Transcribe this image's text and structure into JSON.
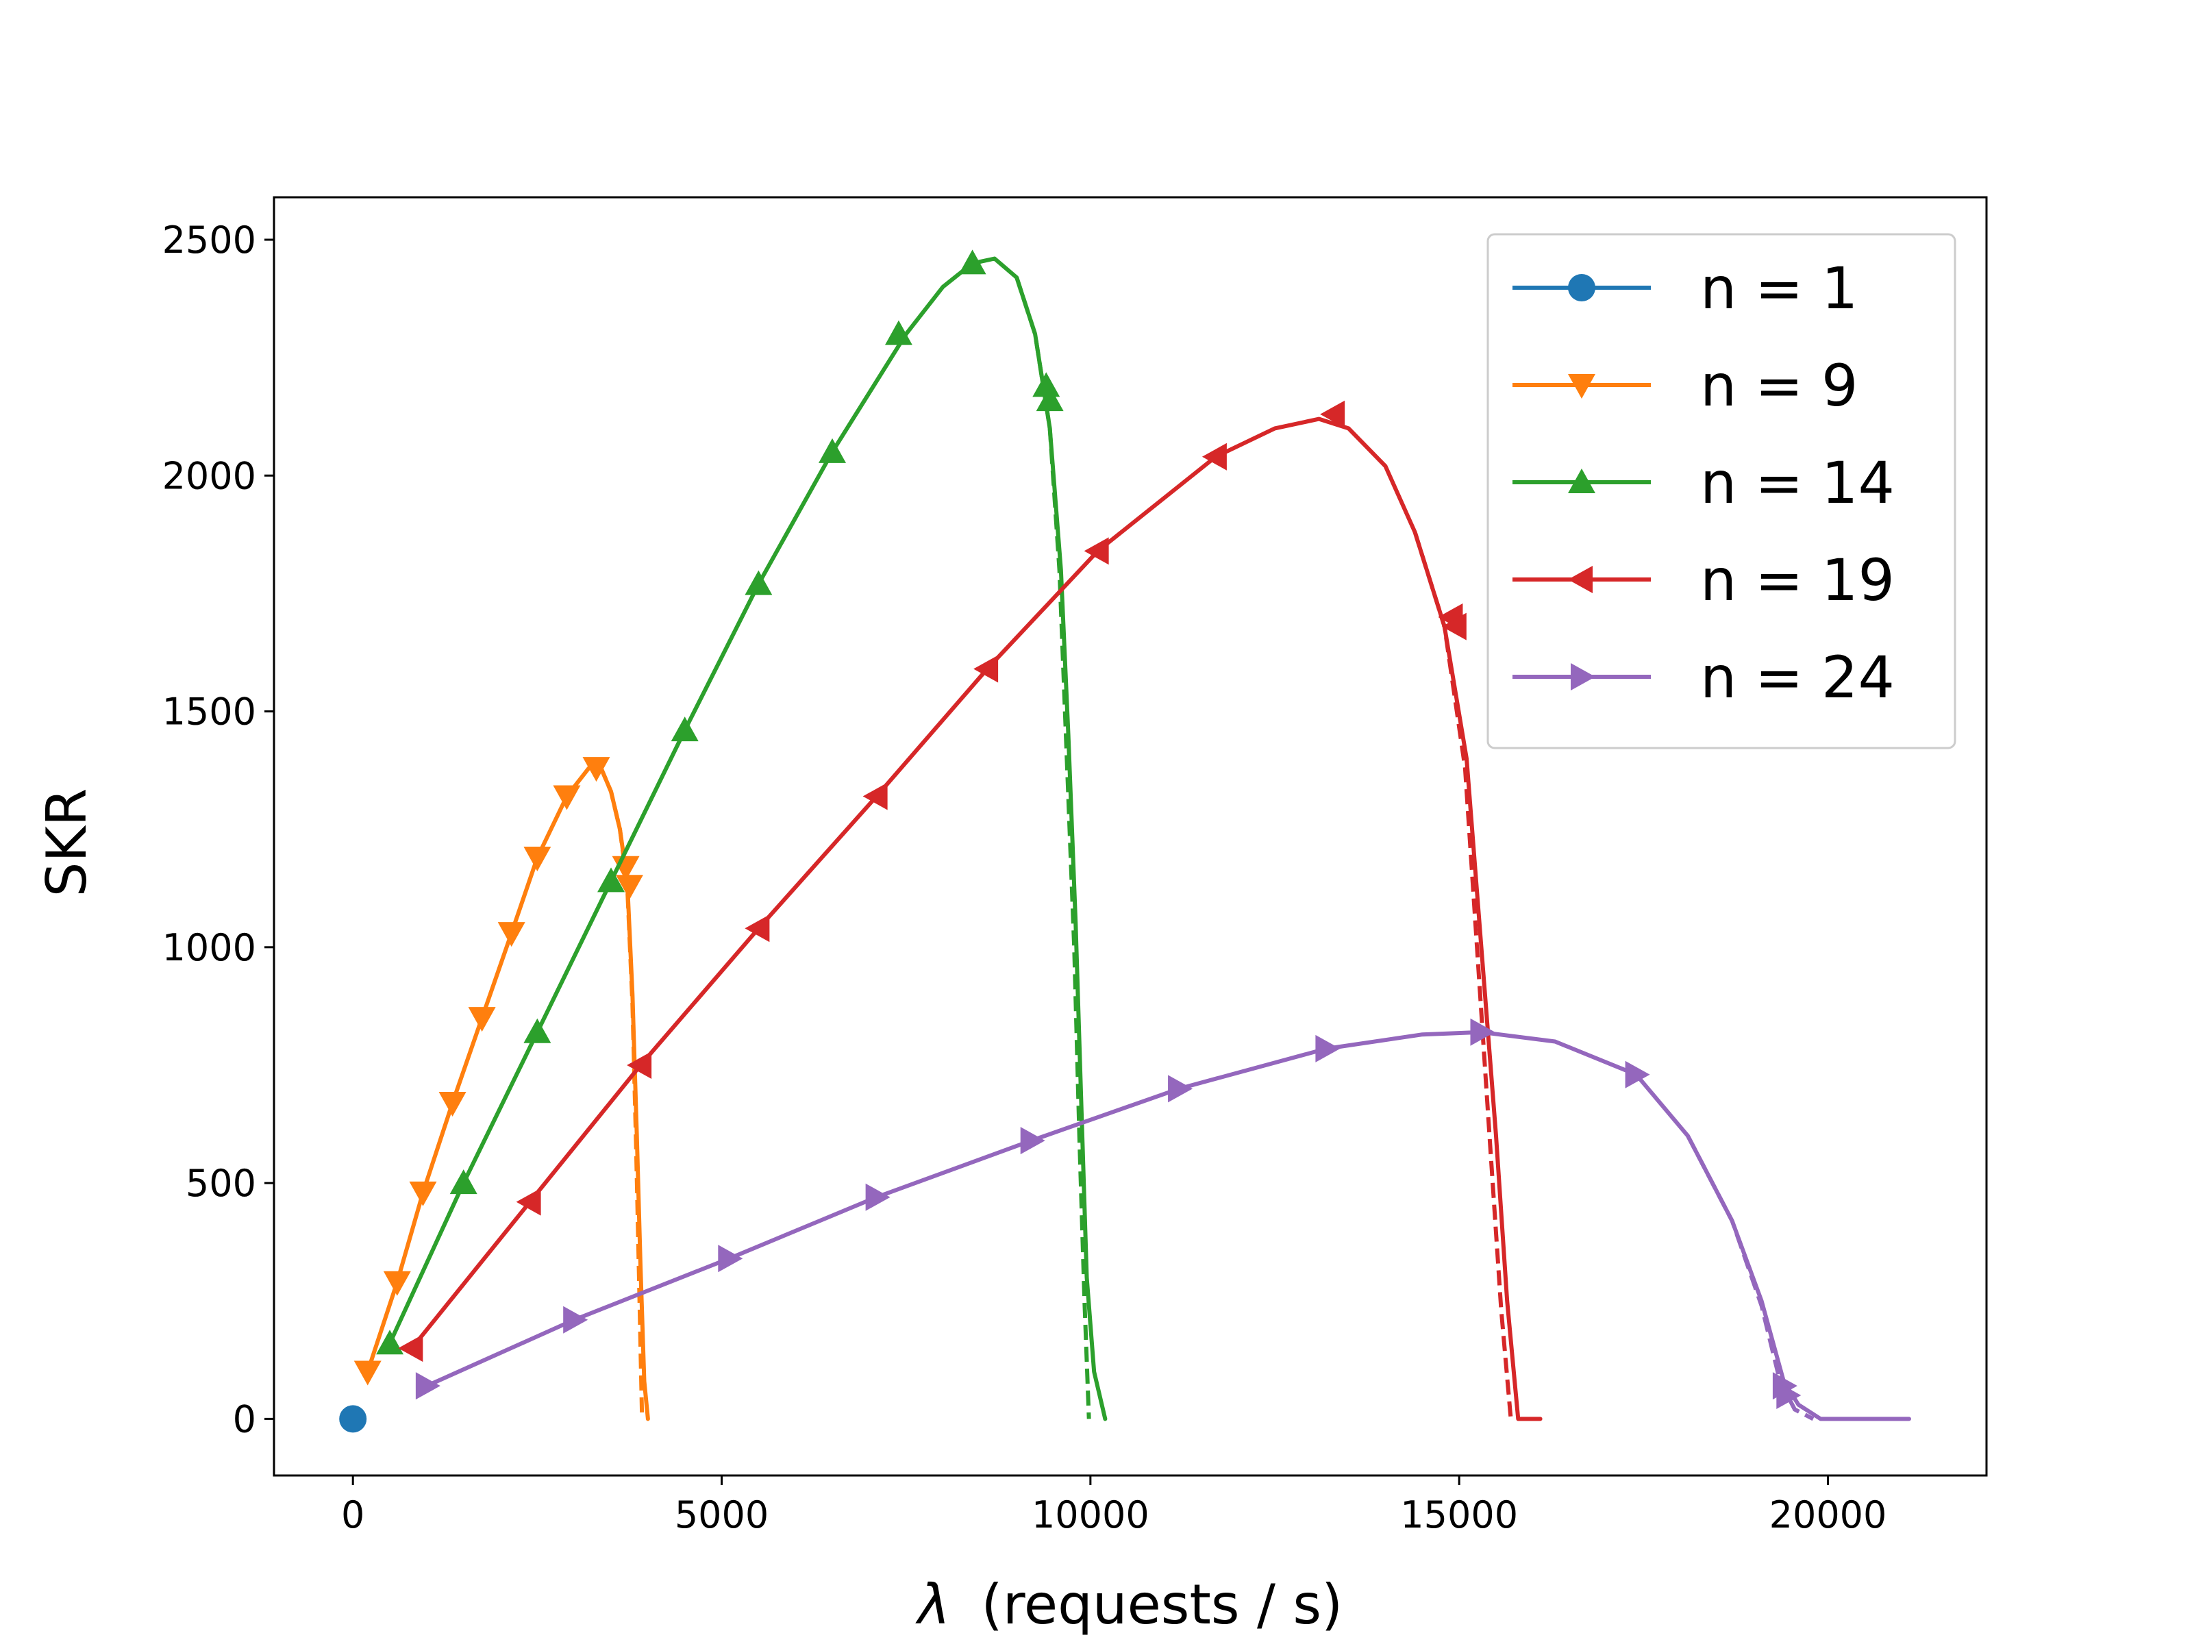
{
  "chart_data": {
    "type": "line",
    "title": "",
    "xlabel": "(requests / s)",
    "xlabel_symbol": "λ",
    "ylabel": "SKR",
    "xlim": [
      -1070,
      22150
    ],
    "ylim": [
      -120,
      2590
    ],
    "xticks": [
      0,
      5000,
      10000,
      15000,
      20000
    ],
    "yticks": [
      0,
      500,
      1000,
      1500,
      2000,
      2500
    ],
    "grid": false,
    "legend_position": "top-right",
    "series": [
      {
        "name": "n = 1",
        "color": "#1f77b4",
        "marker": "circle",
        "x": [
          0
        ],
        "y": [
          0
        ],
        "markers_x": [
          0
        ],
        "markers_y": [
          0
        ]
      },
      {
        "name": "n = 9",
        "color": "#ff7f0e",
        "marker": "triangle-down",
        "x": [
          200,
          600,
          950,
          1350,
          1750,
          2150,
          2500,
          2900,
          3200,
          3350,
          3500,
          3620,
          3720,
          3790,
          3850,
          3900,
          3950,
          4000
        ],
        "y": [
          100,
          290,
          480,
          670,
          850,
          1030,
          1190,
          1320,
          1380,
          1385,
          1330,
          1250,
          1140,
          900,
          600,
          320,
          80,
          0
        ],
        "dashed_x": [
          3350,
          3500,
          3620,
          3720,
          3790,
          3840,
          3880,
          3920
        ],
        "dashed_y": [
          1385,
          1330,
          1250,
          1130,
          880,
          580,
          300,
          0
        ],
        "markers_x": [
          200,
          600,
          950,
          1350,
          1750,
          2150,
          2500,
          2900,
          3300,
          3700,
          3750
        ],
        "markers_y": [
          100,
          290,
          480,
          670,
          850,
          1030,
          1190,
          1320,
          1380,
          1170,
          1130
        ]
      },
      {
        "name": "n = 14",
        "color": "#2ca02c",
        "marker": "triangle-up",
        "x": [
          500,
          1500,
          2500,
          3500,
          4500,
          5500,
          6500,
          7500,
          8000,
          8400,
          8700,
          9000,
          9250,
          9450,
          9600,
          9700,
          9800,
          9880,
          9950,
          10050,
          10200
        ],
        "y": [
          160,
          500,
          820,
          1140,
          1460,
          1770,
          2050,
          2300,
          2400,
          2450,
          2460,
          2420,
          2300,
          2100,
          1800,
          1450,
          1050,
          650,
          300,
          100,
          0
        ],
        "dashed_x": [
          9000,
          9250,
          9450,
          9580,
          9680,
          9780,
          9850,
          9920,
          9980
        ],
        "dashed_y": [
          2420,
          2300,
          2100,
          1800,
          1400,
          1000,
          600,
          250,
          0
        ],
        "markers_x": [
          500,
          1500,
          2500,
          3500,
          4500,
          5500,
          6500,
          7400,
          8400,
          9400,
          9450
        ],
        "markers_y": [
          160,
          500,
          820,
          1140,
          1460,
          1770,
          2050,
          2300,
          2450,
          2190,
          2160
        ]
      },
      {
        "name": "n = 19",
        "color": "#d62728",
        "marker": "triangle-left",
        "x": [
          800,
          2400,
          3900,
          5500,
          7100,
          8600,
          10100,
          11700,
          12500,
          13100,
          13500,
          14000,
          14400,
          14800,
          15100,
          15300,
          15500,
          15650,
          15800,
          16100
        ],
        "y": [
          150,
          460,
          750,
          1040,
          1320,
          1590,
          1840,
          2040,
          2100,
          2120,
          2100,
          2020,
          1880,
          1680,
          1400,
          1000,
          600,
          250,
          0,
          0
        ],
        "dashed_x": [
          14400,
          14800,
          15080,
          15250,
          15420,
          15570,
          15700
        ],
        "dashed_y": [
          1880,
          1680,
          1380,
          980,
          580,
          230,
          0
        ],
        "markers_x": [
          800,
          2400,
          3900,
          5500,
          7100,
          8600,
          10100,
          11700,
          13300,
          14900,
          14950
        ],
        "markers_y": [
          150,
          460,
          750,
          1040,
          1320,
          1590,
          1840,
          2040,
          2130,
          1700,
          1680
        ]
      },
      {
        "name": "n = 24",
        "color": "#9467bd",
        "marker": "triangle-right",
        "x": [
          1000,
          3000,
          5100,
          7100,
          9200,
          11200,
          13200,
          14500,
          15300,
          16300,
          17400,
          18100,
          18700,
          19100,
          19400,
          19600,
          19900,
          21100
        ],
        "y": [
          70,
          210,
          340,
          470,
          590,
          700,
          785,
          815,
          820,
          800,
          730,
          600,
          420,
          250,
          80,
          30,
          0,
          0
        ],
        "dashed_x": [
          18100,
          18700,
          19100,
          19350,
          19550,
          19800
        ],
        "dashed_y": [
          600,
          420,
          240,
          80,
          20,
          0
        ],
        "markers_x": [
          1000,
          3000,
          5100,
          7100,
          9200,
          11200,
          13200,
          15300,
          17400,
          19400,
          19450
        ],
        "markers_y": [
          70,
          210,
          340,
          470,
          590,
          700,
          785,
          820,
          730,
          70,
          50
        ]
      }
    ]
  }
}
